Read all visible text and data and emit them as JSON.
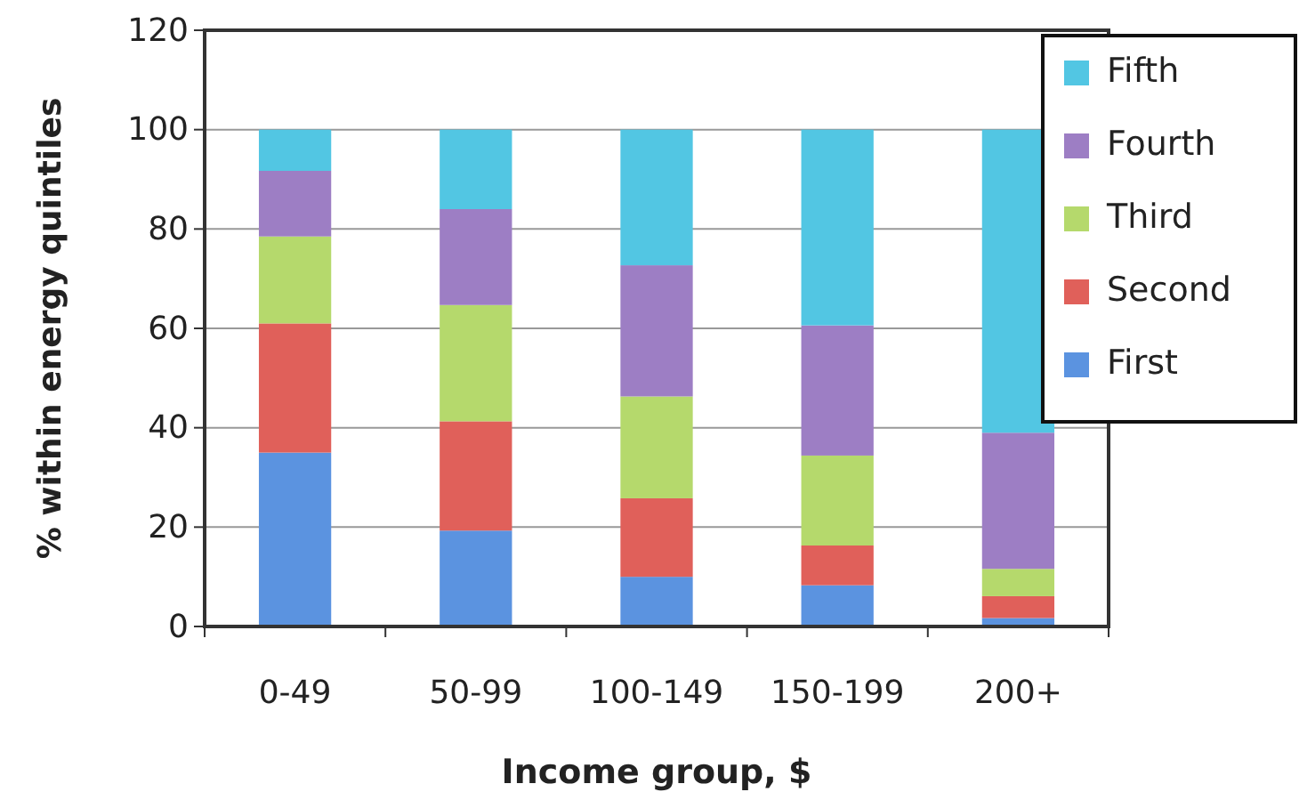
{
  "chart_data": {
    "type": "bar",
    "stacked": true,
    "xlabel": "Income group, $",
    "ylabel": "% within energy quintiles",
    "categories": [
      "0-49",
      "50-99",
      "100-149",
      "150-199",
      "200+"
    ],
    "series": [
      {
        "name": "First",
        "color": "#5b93e0",
        "values": [
          35,
          19.3,
          10,
          8.3,
          1.7
        ]
      },
      {
        "name": "Second",
        "color": "#e0605a",
        "values": [
          26,
          22,
          15.8,
          8,
          4.4
        ]
      },
      {
        "name": "Third",
        "color": "#b5d96c",
        "values": [
          17.5,
          23.4,
          20.5,
          18.1,
          5.5
        ]
      },
      {
        "name": "Fourth",
        "color": "#9d7ec4",
        "values": [
          13.2,
          19.3,
          26.4,
          26.2,
          27.4
        ]
      },
      {
        "name": "Fifth",
        "color": "#52c6e3",
        "values": [
          8.3,
          16,
          27.3,
          39.4,
          61
        ]
      }
    ],
    "ylim": [
      0,
      120
    ],
    "yticks": [
      0,
      20,
      40,
      60,
      80,
      100,
      120
    ],
    "grid": "y",
    "legend": "top right"
  }
}
